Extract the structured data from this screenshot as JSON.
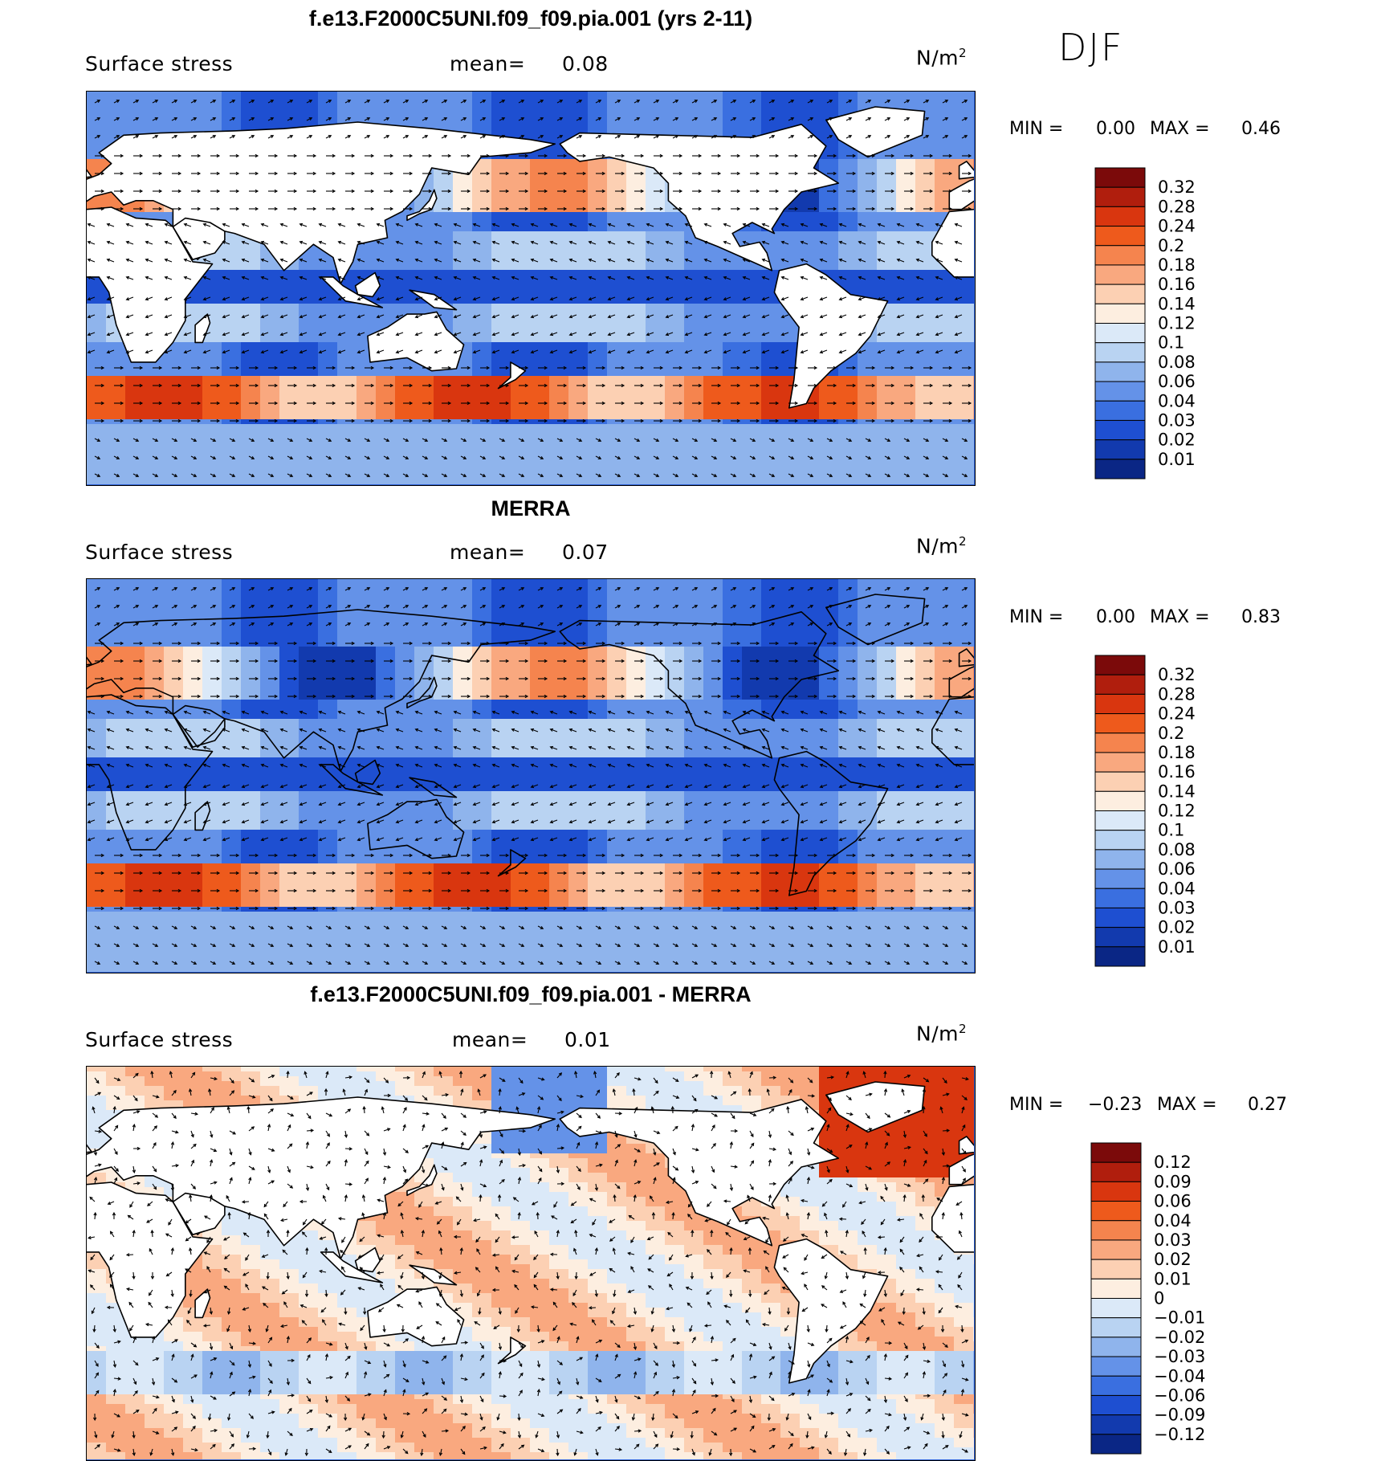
{
  "season_label": "DJF",
  "panels": [
    {
      "title": "f.e13.F2000C5UNI.f09_f09.pia.001 (yrs 2-11)",
      "variable": "Surface stress",
      "mean_label": "mean=",
      "mean_value": "0.08",
      "units_base": "N/m",
      "units_exp": "2",
      "min_label": "MIN =",
      "min_value": "0.00",
      "max_label": "MAX =",
      "max_value": "0.46",
      "colorbar_labels": [
        "0.32",
        "0.28",
        "0.24",
        "0.2",
        "0.18",
        "0.16",
        "0.14",
        "0.12",
        "0.1",
        "0.08",
        "0.06",
        "0.04",
        "0.03",
        "0.02",
        "0.01"
      ],
      "colorbar_colors": [
        "#7b0a0a",
        "#b01e0d",
        "#d9360f",
        "#ee5a1c",
        "#f5844e",
        "#f9a87f",
        "#fcd0b3",
        "#fdeee0",
        "#dbe9f8",
        "#b9d3f2",
        "#8fb4ec",
        "#6492e8",
        "#3a6fe0",
        "#1e4fd1",
        "#123aae",
        "#0a2685"
      ],
      "field": "total"
    },
    {
      "title": "MERRA",
      "variable": "Surface stress",
      "mean_label": "mean=",
      "mean_value": "0.07",
      "units_base": "N/m",
      "units_exp": "2",
      "min_label": "MIN =",
      "min_value": "0.00",
      "max_label": "MAX =",
      "max_value": "0.83",
      "colorbar_labels": [
        "0.32",
        "0.28",
        "0.24",
        "0.2",
        "0.18",
        "0.16",
        "0.14",
        "0.12",
        "0.1",
        "0.08",
        "0.06",
        "0.04",
        "0.03",
        "0.02",
        "0.01"
      ],
      "colorbar_colors": [
        "#7b0a0a",
        "#b01e0d",
        "#d9360f",
        "#ee5a1c",
        "#f5844e",
        "#f9a87f",
        "#fcd0b3",
        "#fdeee0",
        "#dbe9f8",
        "#b9d3f2",
        "#8fb4ec",
        "#6492e8",
        "#3a6fe0",
        "#1e4fd1",
        "#123aae",
        "#0a2685"
      ],
      "field": "total"
    },
    {
      "title": "f.e13.F2000C5UNI.f09_f09.pia.001 - MERRA",
      "variable": "Surface stress",
      "mean_label": "mean=",
      "mean_value": "0.01",
      "units_base": "N/m",
      "units_exp": "2",
      "min_label": "MIN =",
      "min_value": "−0.23",
      "max_label": "MAX =",
      "max_value": "0.27",
      "colorbar_labels": [
        "0.12",
        "0.09",
        "0.06",
        "0.04",
        "0.03",
        "0.02",
        "0.01",
        "0",
        "−0.01",
        "−0.02",
        "−0.03",
        "−0.04",
        "−0.06",
        "−0.09",
        "−0.12"
      ],
      "colorbar_colors": [
        "#7b0a0a",
        "#b01e0d",
        "#d9360f",
        "#ee5a1c",
        "#f5844e",
        "#f9a87f",
        "#fcd0b3",
        "#fdeee0",
        "#dbe9f8",
        "#b9d3f2",
        "#8fb4ec",
        "#6492e8",
        "#3a6fe0",
        "#1e4fd1",
        "#123aae",
        "#0a2685"
      ],
      "field": "diff"
    }
  ]
}
